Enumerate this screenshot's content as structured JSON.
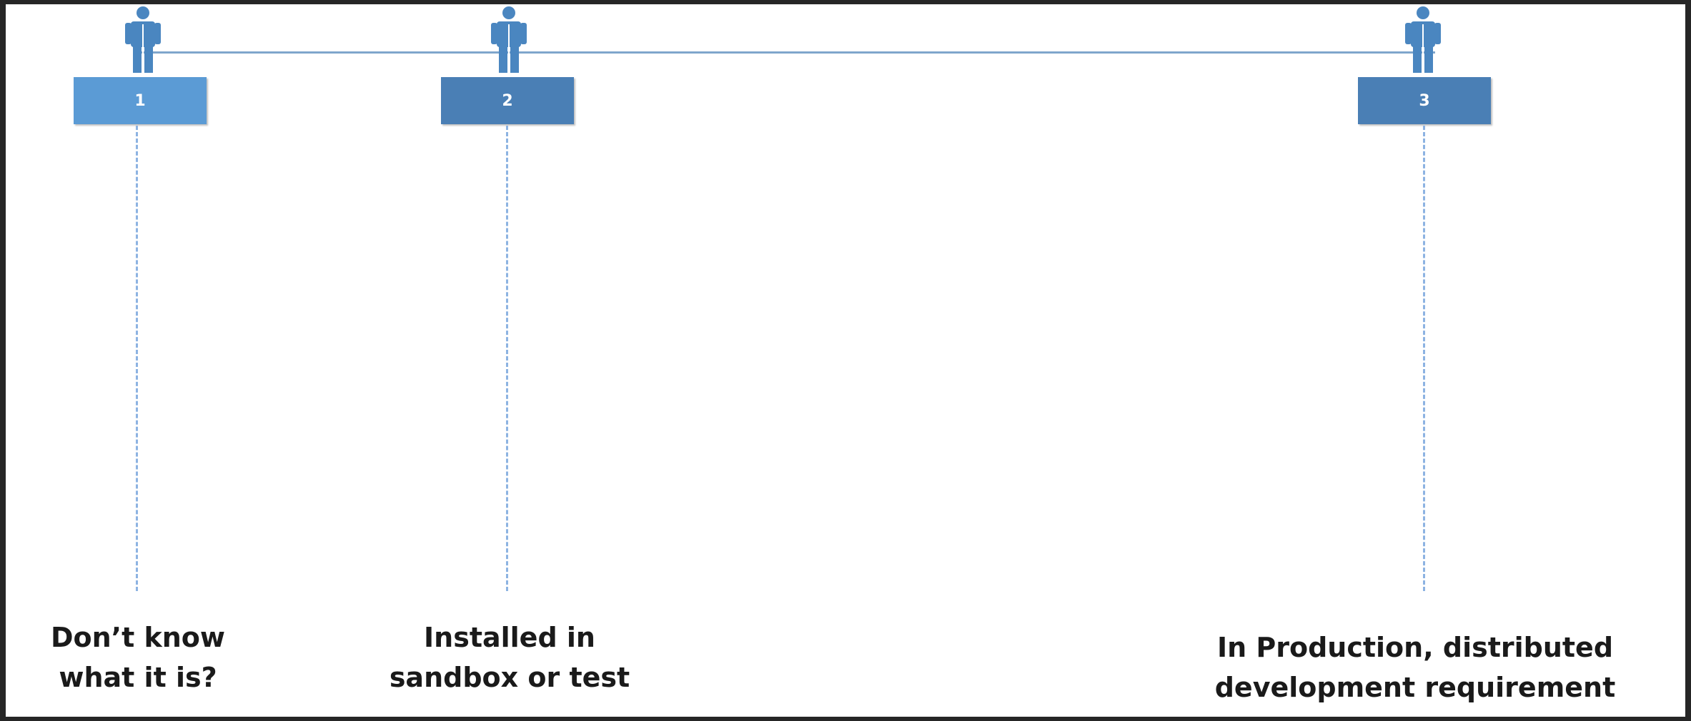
{
  "colors": {
    "frame": "#262626",
    "background": "#ffffff",
    "box_light": "#5b9bd5",
    "box_dark": "#4a7fb5",
    "person": "#4a86c0",
    "line": "#7fa6cc",
    "dashes": "#8db3e2"
  },
  "stages": [
    {
      "number": "1",
      "label_line1": "Don’t know",
      "label_line2": "what it is?",
      "icon": "person-icon"
    },
    {
      "number": "2",
      "label_line1": "Installed in",
      "label_line2": "sandbox or test",
      "icon": "person-icon"
    },
    {
      "number": "3",
      "label_line1": "In Production, distributed",
      "label_line2": "development requirement",
      "icon": "person-icon"
    }
  ]
}
